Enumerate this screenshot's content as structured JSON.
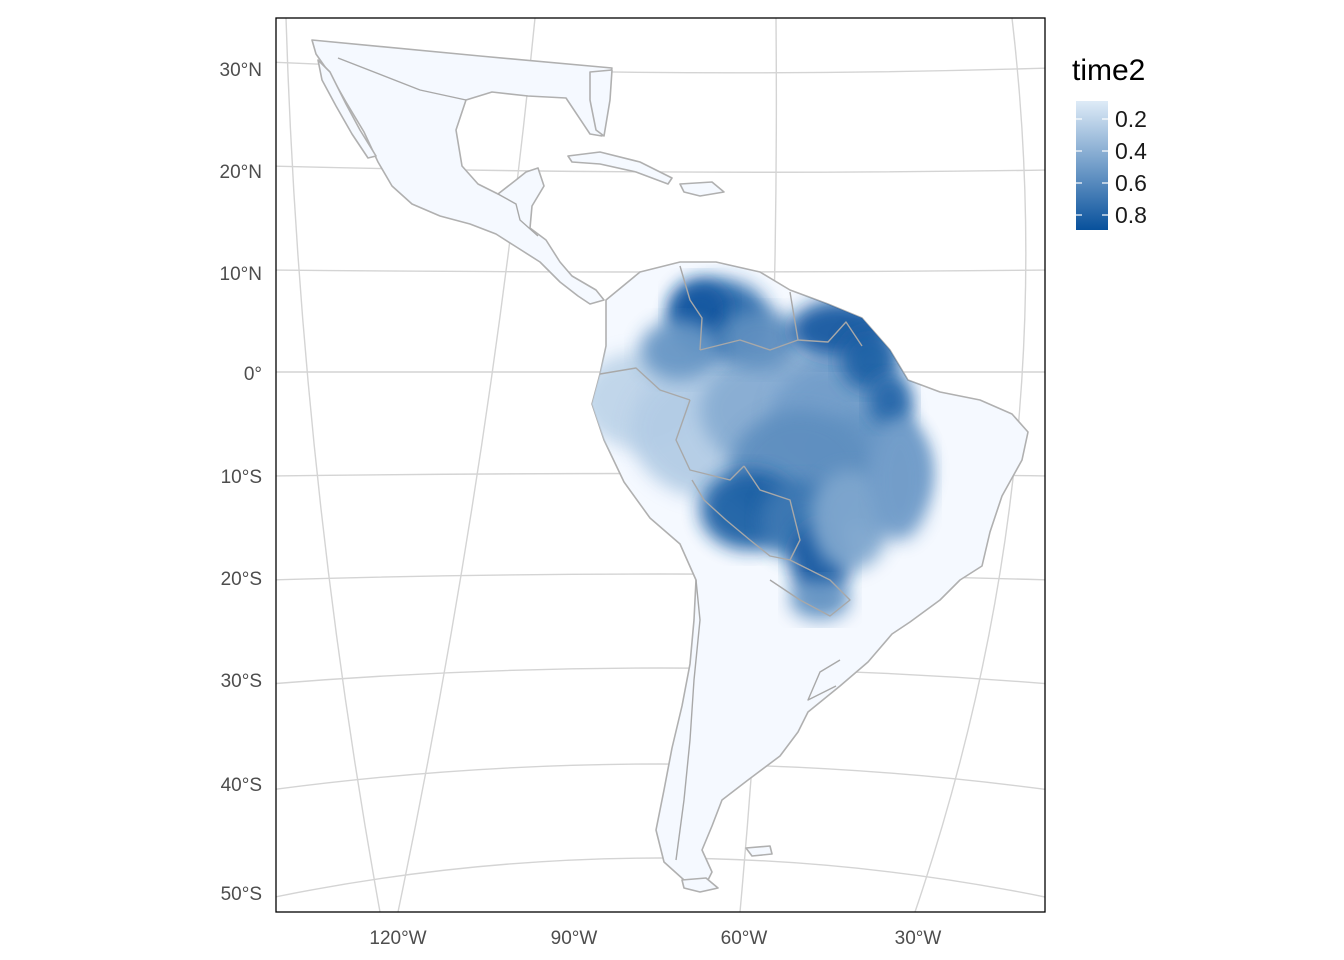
{
  "legend": {
    "title": "time2",
    "labels": [
      "0.2",
      "0.4",
      "0.6",
      "0.8"
    ],
    "color_low": "#deebf7",
    "color_high": "#08519c"
  },
  "axes": {
    "y_labels": [
      "30°N",
      "20°N",
      "10°N",
      "0°",
      "10°S",
      "20°S",
      "30°S",
      "40°S",
      "50°S"
    ],
    "x_labels": [
      "120°W",
      "90°W",
      "60°W",
      "30°W"
    ]
  },
  "colors": {
    "land": "#f5f9ff",
    "border": "#a8a8a8",
    "graticule": "#d4d4d4",
    "panel_border": "#000000"
  }
}
